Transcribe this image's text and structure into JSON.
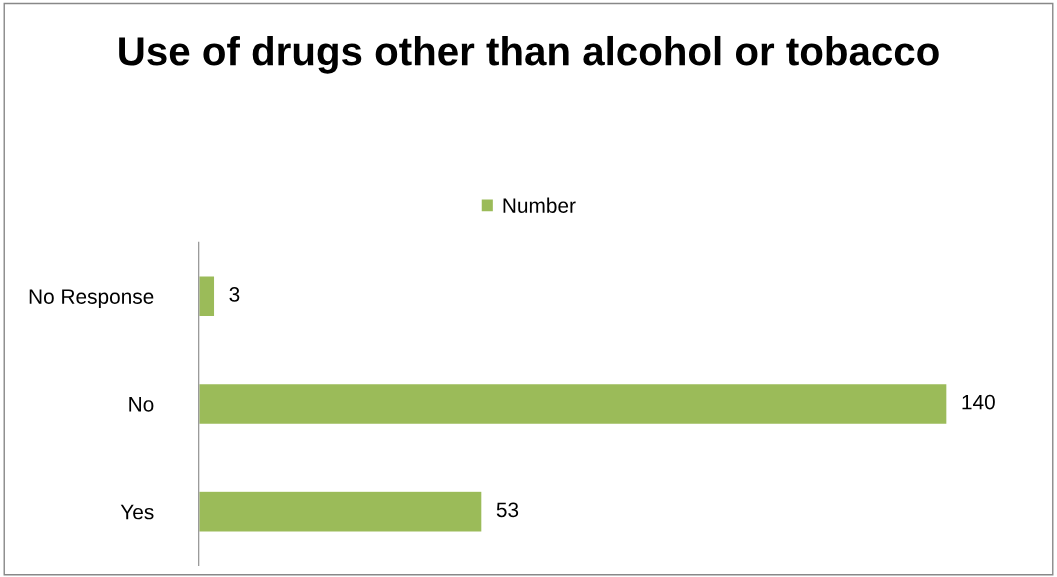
{
  "chart_data": {
    "type": "bar",
    "orientation": "horizontal",
    "title": "Use of drugs other than alcohol or tobacco",
    "categories": [
      "No Response",
      "No",
      "Yes"
    ],
    "series": [
      {
        "name": "Number",
        "color": "#9bbb59",
        "values": [
          3,
          140,
          53
        ]
      }
    ],
    "data_labels": true,
    "legend": "top",
    "grid": false,
    "tick_labels": "y"
  }
}
